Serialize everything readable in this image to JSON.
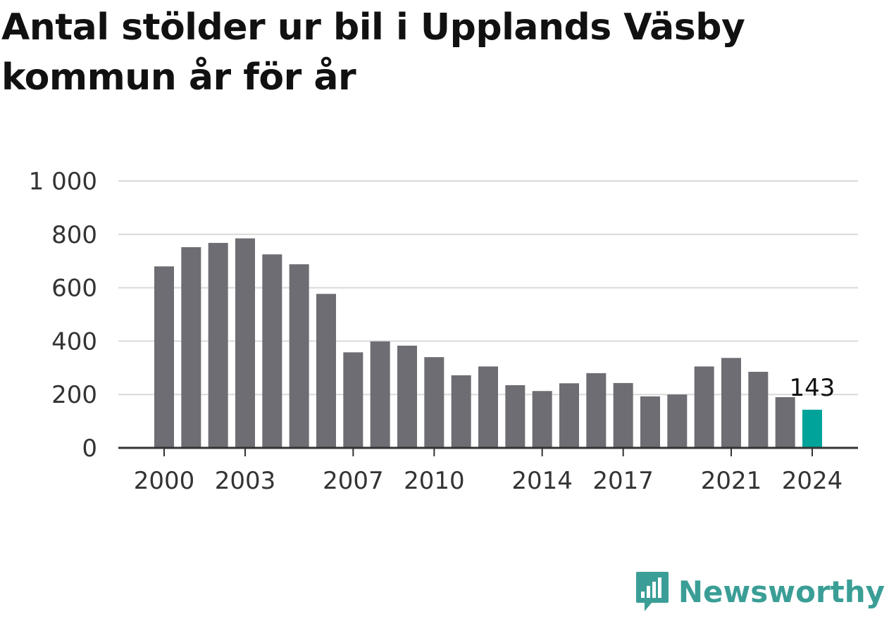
{
  "title": "Antal stölder ur bil i Upplands Väsby kommun år för år",
  "brand": {
    "name": "Newsworthy",
    "color": "#3a9e96"
  },
  "colors": {
    "bar": "#6e6d73",
    "highlight": "#00a399",
    "grid": "#d9d9d9",
    "axis": "#333333"
  },
  "chart_data": {
    "type": "bar",
    "title": "Antal stölder ur bil i Upplands Väsby kommun år för år",
    "xlabel": "",
    "ylabel": "",
    "categories": [
      "2000",
      "2001",
      "2002",
      "2003",
      "2004",
      "2005",
      "2006",
      "2007",
      "2008",
      "2009",
      "2010",
      "2011",
      "2012",
      "2013",
      "2014",
      "2015",
      "2016",
      "2017",
      "2018",
      "2019",
      "2020",
      "2021",
      "2022",
      "2023",
      "2024"
    ],
    "values": [
      680,
      752,
      768,
      785,
      725,
      688,
      577,
      358,
      399,
      383,
      340,
      272,
      305,
      235,
      213,
      242,
      280,
      243,
      193,
      200,
      305,
      337,
      285,
      190,
      143
    ],
    "x_tick_labels": [
      "2000",
      "2003",
      "2007",
      "2010",
      "2014",
      "2017",
      "2021",
      "2024"
    ],
    "y_ticks": [
      0,
      200,
      400,
      600,
      800,
      1000
    ],
    "y_tick_labels": [
      "0",
      "200",
      "400",
      "600",
      "800",
      "1 000"
    ],
    "ylim": [
      0,
      1000
    ],
    "grid": true,
    "highlight_index": 24,
    "highlight_label": "143"
  }
}
